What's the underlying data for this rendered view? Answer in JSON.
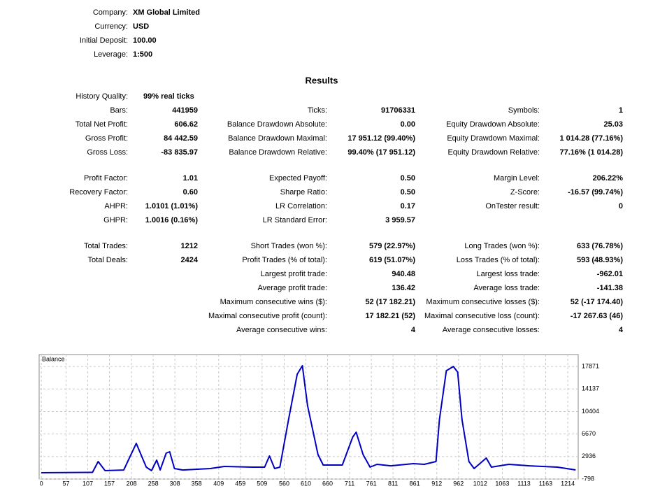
{
  "settings": [
    {
      "label": "Company:",
      "value": "XM Global Limited"
    },
    {
      "label": "Currency:",
      "value": "USD"
    },
    {
      "label": "Initial Deposit:",
      "value": "100.00"
    },
    {
      "label": "Leverage:",
      "value": "1:500"
    }
  ],
  "results": {
    "title": "Results",
    "history_quality": {
      "label": "History Quality:",
      "value": "99% real ticks"
    },
    "blocks": [
      [
        [
          {
            "label": "Bars:",
            "value": "441959"
          },
          {
            "label": "Ticks:",
            "value": "91706331"
          },
          {
            "label": "Symbols:",
            "value": "1"
          }
        ],
        [
          {
            "label": "Total Net Profit:",
            "value": "606.62"
          },
          {
            "label": "Balance Drawdown Absolute:",
            "value": "0.00"
          },
          {
            "label": "Equity Drawdown Absolute:",
            "value": "25.03"
          }
        ],
        [
          {
            "label": "Gross Profit:",
            "value": "84 442.59"
          },
          {
            "label": "Balance Drawdown Maximal:",
            "value": "17 951.12 (99.40%)"
          },
          {
            "label": "Equity Drawdown Maximal:",
            "value": "1 014.28 (77.16%)"
          }
        ],
        [
          {
            "label": "Gross Loss:",
            "value": "-83 835.97"
          },
          {
            "label": "Balance Drawdown Relative:",
            "value": "99.40% (17 951.12)"
          },
          {
            "label": "Equity Drawdown Relative:",
            "value": "77.16% (1 014.28)"
          }
        ]
      ],
      [
        [
          {
            "label": "Profit Factor:",
            "value": "1.01"
          },
          {
            "label": "Expected Payoff:",
            "value": "0.50"
          },
          {
            "label": "Margin Level:",
            "value": "206.22%"
          }
        ],
        [
          {
            "label": "Recovery Factor:",
            "value": "0.60"
          },
          {
            "label": "Sharpe Ratio:",
            "value": "0.50"
          },
          {
            "label": "Z-Score:",
            "value": "-16.57 (99.74%)"
          }
        ],
        [
          {
            "label": "AHPR:",
            "value": "1.0101 (1.01%)"
          },
          {
            "label": "LR Correlation:",
            "value": "0.17"
          },
          {
            "label": "OnTester result:",
            "value": "0"
          }
        ],
        [
          {
            "label": "GHPR:",
            "value": "1.0016 (0.16%)"
          },
          {
            "label": "LR Standard Error:",
            "value": "3 959.57"
          },
          null
        ]
      ],
      [
        [
          {
            "label": "Total Trades:",
            "value": "1212"
          },
          {
            "label": "Short Trades (won %):",
            "value": "579 (22.97%)"
          },
          {
            "label": "Long Trades (won %):",
            "value": "633 (76.78%)"
          }
        ],
        [
          {
            "label": "Total Deals:",
            "value": "2424"
          },
          {
            "label": "Profit Trades (% of total):",
            "value": "619 (51.07%)"
          },
          {
            "label": "Loss Trades (% of total):",
            "value": "593 (48.93%)"
          }
        ],
        [
          null,
          {
            "label": "Largest profit trade:",
            "value": "940.48"
          },
          {
            "label": "Largest loss trade:",
            "value": "-962.01"
          }
        ],
        [
          null,
          {
            "label": "Average profit trade:",
            "value": "136.42"
          },
          {
            "label": "Average loss trade:",
            "value": "-141.38"
          }
        ],
        [
          null,
          {
            "label": "Maximum consecutive wins ($):",
            "value": "52 (17 182.21)"
          },
          {
            "label": "Maximum consecutive losses ($):",
            "value": "52 (-17 174.40)"
          }
        ],
        [
          null,
          {
            "label": "Maximal consecutive profit (count):",
            "value": "17 182.21 (52)"
          },
          {
            "label": "Maximal consecutive loss (count):",
            "value": "-17 267.63 (46)"
          }
        ],
        [
          null,
          {
            "label": "Average consecutive wins:",
            "value": "4"
          },
          {
            "label": "Average consecutive losses:",
            "value": "4"
          }
        ]
      ]
    ]
  },
  "chart_data": {
    "type": "line",
    "title": "Balance",
    "x": [
      0,
      118,
      131,
      147,
      190,
      219,
      242,
      254,
      266,
      274,
      288,
      296,
      307,
      326,
      390,
      422,
      486,
      515,
      526,
      538,
      550,
      570,
      590,
      602,
      614,
      638,
      650,
      694,
      718,
      726,
      742,
      758,
      774,
      806,
      858,
      883,
      910,
      918,
      934,
      950,
      960,
      970,
      986,
      998,
      1026,
      1038,
      1078,
      1126,
      1190,
      1232
    ],
    "series": [
      {
        "name": "Balance",
        "color": "#0000c0",
        "values": [
          250,
          300,
          2100,
          600,
          700,
          5120,
          1170,
          600,
          2330,
          700,
          3500,
          3726,
          940,
          700,
          940,
          1290,
          1170,
          1170,
          3030,
          940,
          1170,
          9060,
          16600,
          18000,
          11380,
          3260,
          1520,
          1520,
          6160,
          6970,
          3260,
          1170,
          1640,
          1400,
          1750,
          1640,
          2100,
          9060,
          17180,
          17880,
          16950,
          9060,
          2100,
          940,
          2680,
          1170,
          1640,
          1400,
          1170,
          707
        ]
      }
    ],
    "xlim": [
      -5,
      1238
    ],
    "ylim": [
      -798,
      19860
    ],
    "xticks": [
      0,
      57,
      107,
      157,
      208,
      258,
      308,
      358,
      409,
      459,
      509,
      560,
      610,
      660,
      711,
      761,
      811,
      861,
      912,
      962,
      1012,
      1063,
      1113,
      1163,
      1214
    ],
    "yticks": [
      17871,
      14137,
      10404,
      6670,
      2936,
      -798
    ],
    "grid": true
  }
}
